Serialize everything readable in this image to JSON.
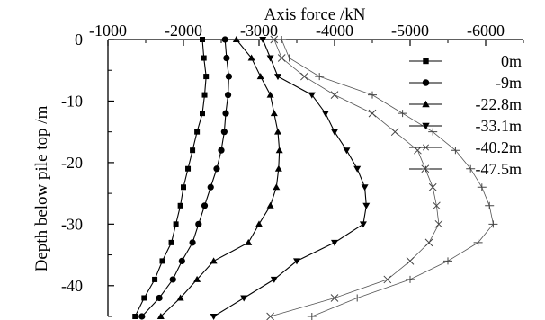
{
  "chart_data": {
    "type": "line",
    "xlabel": "Axis force /kN",
    "ylabel": "Depth below pile top /m",
    "xlim": [
      -1000,
      -6500
    ],
    "ylim": [
      -45,
      0
    ],
    "x_axis_position": "top",
    "x_ticks": [
      -1000,
      -2000,
      -3000,
      -4000,
      -5000,
      -6000
    ],
    "y_ticks": [
      0,
      -10,
      -20,
      -30,
      -40
    ],
    "x_tick_labels": [
      "-1000",
      "-2000",
      "-3000",
      "-4000",
      "-5000",
      "-6000"
    ],
    "y_tick_labels": [
      "0",
      "-10",
      "-20",
      "-30",
      "-40"
    ],
    "legend_position": "right",
    "grid": false,
    "series": [
      {
        "name": "0m",
        "marker": "square",
        "points": [
          {
            "x": -2250,
            "y": 0
          },
          {
            "x": -2270,
            "y": -3
          },
          {
            "x": -2300,
            "y": -6
          },
          {
            "x": -2280,
            "y": -9
          },
          {
            "x": -2250,
            "y": -12
          },
          {
            "x": -2180,
            "y": -15
          },
          {
            "x": -2120,
            "y": -18
          },
          {
            "x": -2060,
            "y": -21
          },
          {
            "x": -2000,
            "y": -24
          },
          {
            "x": -1960,
            "y": -27
          },
          {
            "x": -1900,
            "y": -30
          },
          {
            "x": -1840,
            "y": -33
          },
          {
            "x": -1720,
            "y": -36
          },
          {
            "x": -1620,
            "y": -39
          },
          {
            "x": -1480,
            "y": -42
          },
          {
            "x": -1360,
            "y": -45
          }
        ]
      },
      {
        "name": "-9m",
        "marker": "circle",
        "points": [
          {
            "x": -2550,
            "y": 0
          },
          {
            "x": -2570,
            "y": -3
          },
          {
            "x": -2600,
            "y": -6
          },
          {
            "x": -2590,
            "y": -9
          },
          {
            "x": -2560,
            "y": -12
          },
          {
            "x": -2540,
            "y": -15
          },
          {
            "x": -2500,
            "y": -18
          },
          {
            "x": -2440,
            "y": -21
          },
          {
            "x": -2360,
            "y": -24
          },
          {
            "x": -2280,
            "y": -27
          },
          {
            "x": -2200,
            "y": -30
          },
          {
            "x": -2120,
            "y": -33
          },
          {
            "x": -1980,
            "y": -36
          },
          {
            "x": -1860,
            "y": -39
          },
          {
            "x": -1680,
            "y": -42
          },
          {
            "x": -1450,
            "y": -45
          }
        ]
      },
      {
        "name": "-22.8m",
        "marker": "triangle-up",
        "points": [
          {
            "x": -2700,
            "y": 0
          },
          {
            "x": -2900,
            "y": -3
          },
          {
            "x": -3020,
            "y": -6
          },
          {
            "x": -3150,
            "y": -9
          },
          {
            "x": -3200,
            "y": -12
          },
          {
            "x": -3250,
            "y": -15
          },
          {
            "x": -3270,
            "y": -18
          },
          {
            "x": -3260,
            "y": -21
          },
          {
            "x": -3230,
            "y": -24
          },
          {
            "x": -3150,
            "y": -27
          },
          {
            "x": -3000,
            "y": -30
          },
          {
            "x": -2860,
            "y": -33
          },
          {
            "x": -2400,
            "y": -36
          },
          {
            "x": -2180,
            "y": -39
          },
          {
            "x": -1960,
            "y": -42
          },
          {
            "x": -1700,
            "y": -45
          }
        ]
      },
      {
        "name": "-33.1m",
        "marker": "triangle-down",
        "points": [
          {
            "x": -3050,
            "y": 0
          },
          {
            "x": -3150,
            "y": -3
          },
          {
            "x": -3250,
            "y": -6
          },
          {
            "x": -3700,
            "y": -9
          },
          {
            "x": -3880,
            "y": -12
          },
          {
            "x": -4000,
            "y": -15
          },
          {
            "x": -4160,
            "y": -18
          },
          {
            "x": -4300,
            "y": -21
          },
          {
            "x": -4400,
            "y": -24
          },
          {
            "x": -4420,
            "y": -27
          },
          {
            "x": -4380,
            "y": -30
          },
          {
            "x": -4000,
            "y": -33
          },
          {
            "x": -3500,
            "y": -36
          },
          {
            "x": -3200,
            "y": -39
          },
          {
            "x": -2800,
            "y": -42
          },
          {
            "x": -2400,
            "y": -45
          }
        ]
      },
      {
        "name": "-40.2m",
        "marker": "x",
        "points": [
          {
            "x": -3200,
            "y": 0
          },
          {
            "x": -3300,
            "y": -3
          },
          {
            "x": -3600,
            "y": -6
          },
          {
            "x": -4000,
            "y": -9
          },
          {
            "x": -4500,
            "y": -12
          },
          {
            "x": -4800,
            "y": -15
          },
          {
            "x": -5100,
            "y": -18
          },
          {
            "x": -5200,
            "y": -21
          },
          {
            "x": -5300,
            "y": -24
          },
          {
            "x": -5350,
            "y": -27
          },
          {
            "x": -5380,
            "y": -30
          },
          {
            "x": -5250,
            "y": -33
          },
          {
            "x": -5000,
            "y": -36
          },
          {
            "x": -4700,
            "y": -39
          },
          {
            "x": -4000,
            "y": -42
          },
          {
            "x": -3150,
            "y": -45
          }
        ]
      },
      {
        "name": "-47.5m",
        "marker": "plus",
        "points": [
          {
            "x": -3300,
            "y": 0
          },
          {
            "x": -3400,
            "y": -3
          },
          {
            "x": -3800,
            "y": -6
          },
          {
            "x": -4500,
            "y": -9
          },
          {
            "x": -4900,
            "y": -12
          },
          {
            "x": -5300,
            "y": -15
          },
          {
            "x": -5600,
            "y": -18
          },
          {
            "x": -5800,
            "y": -21
          },
          {
            "x": -5950,
            "y": -24
          },
          {
            "x": -6050,
            "y": -27
          },
          {
            "x": -6100,
            "y": -30
          },
          {
            "x": -5900,
            "y": -33
          },
          {
            "x": -5500,
            "y": -36
          },
          {
            "x": -5000,
            "y": -39
          },
          {
            "x": -4300,
            "y": -42
          },
          {
            "x": -3700,
            "y": -45
          }
        ]
      }
    ]
  }
}
